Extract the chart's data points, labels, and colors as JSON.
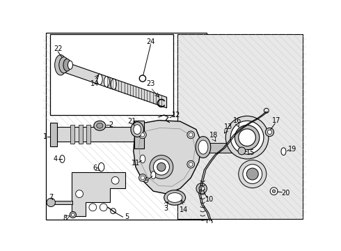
{
  "bg": "white",
  "lc": "black",
  "gray1": "#d8d8d8",
  "gray2": "#c0c0c0",
  "gray3": "#a0a0a0",
  "shade": "#e8e8e8",
  "fig_w": 4.9,
  "fig_h": 3.6,
  "dpi": 100
}
